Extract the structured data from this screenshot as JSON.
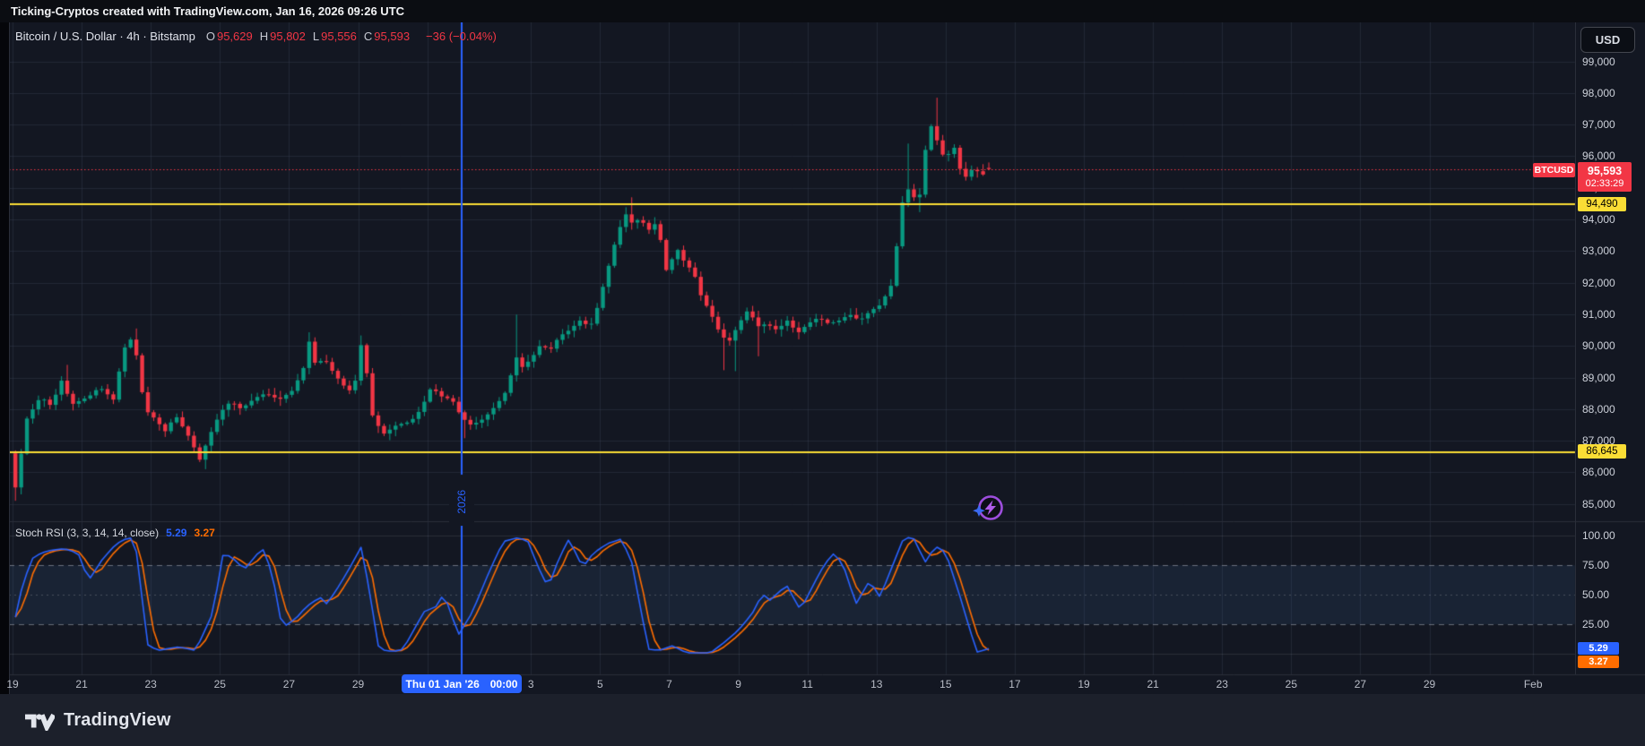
{
  "top_bar": {
    "title": "Ticking-Cryptos created with TradingView.com, Jan 16, 2026 09:26 UTC"
  },
  "chart": {
    "legend": {
      "title": "Bitcoin / U.S. Dollar · 4h · Bitstamp",
      "ohlc": [
        {
          "label": "O",
          "value": "95,629"
        },
        {
          "label": "H",
          "value": "95,802"
        },
        {
          "label": "L",
          "value": "95,556"
        },
        {
          "label": "C",
          "value": "95,593"
        }
      ],
      "change": "−36 (−0.04%)"
    },
    "price_axis": {
      "currency_button": "USD",
      "ticks": [
        {
          "label": "99,000",
          "value": 99000
        },
        {
          "label": "98,000",
          "value": 98000
        },
        {
          "label": "97,000",
          "value": 97000
        },
        {
          "label": "96,000",
          "value": 96000
        },
        {
          "label": "95,000",
          "value": 95000
        },
        {
          "label": "94,000",
          "value": 94000
        },
        {
          "label": "93,000",
          "value": 93000
        },
        {
          "label": "92,000",
          "value": 92000
        },
        {
          "label": "91,000",
          "value": 91000
        },
        {
          "label": "90,000",
          "value": 90000
        },
        {
          "label": "89,000",
          "value": 89000
        },
        {
          "label": "88,000",
          "value": 88000
        },
        {
          "label": "87,000",
          "value": 87000
        },
        {
          "label": "86,000",
          "value": 86000
        },
        {
          "label": "85,000",
          "value": 85000
        }
      ],
      "last_price_label": {
        "symbol": "BTCUSD",
        "price": "95,593",
        "countdown": "02:33:29"
      },
      "level_labels": [
        {
          "text": "94,490"
        },
        {
          "text": "86,645"
        }
      ]
    },
    "time_axis": {
      "ticks": [
        {
          "label": "19",
          "day": 0
        },
        {
          "label": "21",
          "day": 2
        },
        {
          "label": "23",
          "day": 4
        },
        {
          "label": "25",
          "day": 6
        },
        {
          "label": "27",
          "day": 8
        },
        {
          "label": "29",
          "day": 10
        },
        {
          "label": "3",
          "day": 15
        },
        {
          "label": "5",
          "day": 17
        },
        {
          "label": "7",
          "day": 19
        },
        {
          "label": "9",
          "day": 21
        },
        {
          "label": "11",
          "day": 23
        },
        {
          "label": "13",
          "day": 25
        },
        {
          "label": "15",
          "day": 27
        },
        {
          "label": "17",
          "day": 29
        },
        {
          "label": "19",
          "day": 31
        },
        {
          "label": "21",
          "day": 33
        },
        {
          "label": "23",
          "day": 35
        },
        {
          "label": "25",
          "day": 37
        },
        {
          "label": "27",
          "day": 39
        },
        {
          "label": "29",
          "day": 41
        },
        {
          "label": "Feb",
          "day": 44
        }
      ],
      "highlight": {
        "date": "Thu 01 Jan '26",
        "time": "00:00",
        "day": 13
      }
    },
    "year_marker": {
      "label": "2026",
      "day": 13
    }
  },
  "stoch": {
    "legend": {
      "title": "Stoch RSI (3, 3, 14, 14, close)",
      "k": "5.29",
      "d": "3.27"
    },
    "axis": [
      {
        "label": "100.00",
        "value": 100
      },
      {
        "label": "75.00",
        "value": 75
      },
      {
        "label": "50.00",
        "value": 50
      },
      {
        "label": "25.00",
        "value": 25
      }
    ],
    "k_badge": "5.29",
    "d_badge": "3.27"
  },
  "footer": {
    "brand": "TradingView"
  },
  "colors": {
    "background": "#131722",
    "grid": "#363c4e",
    "bull": "#089981",
    "bear": "#f23645",
    "blue": "#2962ff",
    "orange": "#ff6d00",
    "yellow": "#fadd35",
    "purple": "#9d4edd",
    "axis_text": "#cdd1da"
  },
  "chart_data": {
    "type": "candlestick",
    "symbol": "BTCUSD",
    "exchange": "Bitstamp",
    "timeframe": "4h",
    "candles_per_day": 6,
    "visible_days": 45.2,
    "x_start_label": "Dec 19",
    "x_end_label": "Feb",
    "price_ylim": [
      84400,
      100300
    ],
    "grid_days": [
      0,
      2,
      4,
      6,
      8,
      10,
      12,
      15,
      17,
      19,
      21,
      23,
      25,
      27,
      29,
      31,
      33,
      35,
      37,
      39,
      41,
      44
    ],
    "levels": {
      "resistance": 94490,
      "support": 86645,
      "last_price": 95593
    },
    "current_bar": {
      "open": 95629,
      "high": 95802,
      "low": 95556,
      "close": 95593,
      "change": -36,
      "change_pct": -0.04
    },
    "vertical_marker_day": 13,
    "price_path": [
      [
        0.0,
        86600
      ],
      [
        0.17,
        85500
      ],
      [
        0.5,
        87700
      ],
      [
        0.9,
        88400
      ],
      [
        1.2,
        88100
      ],
      [
        1.5,
        88900
      ],
      [
        1.8,
        88150
      ],
      [
        2.3,
        88400
      ],
      [
        2.6,
        88700
      ],
      [
        3.0,
        88300
      ],
      [
        3.3,
        89900
      ],
      [
        3.5,
        90200
      ],
      [
        3.7,
        89600
      ],
      [
        3.9,
        88000
      ],
      [
        4.2,
        87700
      ],
      [
        4.5,
        87300
      ],
      [
        4.8,
        87800
      ],
      [
        5.2,
        87100
      ],
      [
        5.5,
        86400
      ],
      [
        5.8,
        87200
      ],
      [
        6.1,
        87900
      ],
      [
        6.4,
        88250
      ],
      [
        6.7,
        88000
      ],
      [
        7.1,
        88350
      ],
      [
        7.4,
        88500
      ],
      [
        7.8,
        88300
      ],
      [
        8.2,
        88600
      ],
      [
        8.5,
        89300
      ],
      [
        8.65,
        90200
      ],
      [
        8.85,
        89400
      ],
      [
        9.1,
        89600
      ],
      [
        9.4,
        89100
      ],
      [
        9.7,
        88700
      ],
      [
        9.95,
        88500
      ],
      [
        10.15,
        90100
      ],
      [
        10.3,
        89400
      ],
      [
        10.5,
        87800
      ],
      [
        10.8,
        87200
      ],
      [
        11.2,
        87500
      ],
      [
        11.6,
        87600
      ],
      [
        11.9,
        88000
      ],
      [
        12.2,
        88700
      ],
      [
        12.5,
        88400
      ],
      [
        12.8,
        88300
      ],
      [
        13.05,
        87800
      ],
      [
        13.3,
        87500
      ],
      [
        13.6,
        87600
      ],
      [
        13.9,
        87900
      ],
      [
        14.2,
        88300
      ],
      [
        14.45,
        88700
      ],
      [
        14.6,
        89800
      ],
      [
        14.8,
        89300
      ],
      [
        15.1,
        89600
      ],
      [
        15.4,
        90100
      ],
      [
        15.6,
        89800
      ],
      [
        15.9,
        90300
      ],
      [
        16.2,
        90500
      ],
      [
        16.5,
        90800
      ],
      [
        16.8,
        90600
      ],
      [
        17.0,
        91200
      ],
      [
        17.3,
        92400
      ],
      [
        17.6,
        93600
      ],
      [
        17.85,
        94200
      ],
      [
        18.05,
        93800
      ],
      [
        18.25,
        94100
      ],
      [
        18.45,
        93600
      ],
      [
        18.65,
        93900
      ],
      [
        18.85,
        93300
      ],
      [
        19.05,
        92100
      ],
      [
        19.25,
        93200
      ],
      [
        19.5,
        92700
      ],
      [
        19.8,
        92300
      ],
      [
        20.0,
        91600
      ],
      [
        20.3,
        91000
      ],
      [
        20.55,
        90400
      ],
      [
        20.8,
        90100
      ],
      [
        21.1,
        90700
      ],
      [
        21.4,
        91200
      ],
      [
        21.6,
        90600
      ],
      [
        21.9,
        90700
      ],
      [
        22.2,
        90500
      ],
      [
        22.5,
        90800
      ],
      [
        22.8,
        90400
      ],
      [
        23.1,
        90700
      ],
      [
        23.4,
        90900
      ],
      [
        23.7,
        90700
      ],
      [
        24.0,
        90800
      ],
      [
        24.3,
        91000
      ],
      [
        24.6,
        90800
      ],
      [
        24.9,
        91100
      ],
      [
        25.2,
        91300
      ],
      [
        25.5,
        91900
      ],
      [
        25.7,
        93400
      ],
      [
        25.9,
        95100
      ],
      [
        26.1,
        94800
      ],
      [
        26.3,
        94500
      ],
      [
        26.5,
        96200
      ],
      [
        26.7,
        97100
      ],
      [
        26.9,
        96200
      ],
      [
        27.1,
        95900
      ],
      [
        27.3,
        96400
      ],
      [
        27.5,
        95600
      ],
      [
        27.7,
        95300
      ],
      [
        27.9,
        95700
      ],
      [
        28.1,
        95350
      ],
      [
        28.33,
        95593
      ]
    ],
    "wick_events": [
      [
        0.08,
        85100,
        "low"
      ],
      [
        1.5,
        89400,
        "high"
      ],
      [
        3.5,
        90550,
        "high"
      ],
      [
        5.5,
        86100,
        "low"
      ],
      [
        8.65,
        90430,
        "high"
      ],
      [
        10.15,
        90330,
        "high"
      ],
      [
        13.05,
        87080,
        "low"
      ],
      [
        14.6,
        90990,
        "high"
      ],
      [
        17.85,
        94700,
        "high"
      ],
      [
        20.55,
        89230,
        "low"
      ],
      [
        20.85,
        89200,
        "low"
      ],
      [
        21.6,
        89670,
        "low"
      ],
      [
        25.9,
        96400,
        "high"
      ],
      [
        26.3,
        94230,
        "low"
      ],
      [
        26.75,
        97850,
        "high"
      ],
      [
        28.33,
        95802,
        "high"
      ]
    ],
    "stoch_rsi": {
      "title": "Stoch RSI (3, 3, 14, 14, close)",
      "k_last": 5.29,
      "d_last": 3.27,
      "overbought": 75,
      "middle": 50,
      "oversold": 25,
      "ylim": [
        0,
        100
      ],
      "k_path": [
        [
          0.0,
          20
        ],
        [
          0.3,
          60
        ],
        [
          0.6,
          82
        ],
        [
          1.0,
          87
        ],
        [
          1.5,
          89
        ],
        [
          1.9,
          85
        ],
        [
          2.2,
          62
        ],
        [
          2.6,
          80
        ],
        [
          3.0,
          93
        ],
        [
          3.4,
          99
        ],
        [
          3.6,
          85
        ],
        [
          3.9,
          8
        ],
        [
          4.2,
          3
        ],
        [
          4.8,
          6
        ],
        [
          5.3,
          3
        ],
        [
          5.8,
          35
        ],
        [
          6.1,
          86
        ],
        [
          6.5,
          78
        ],
        [
          6.7,
          71
        ],
        [
          7.1,
          85
        ],
        [
          7.3,
          89
        ],
        [
          7.6,
          55
        ],
        [
          7.8,
          22
        ],
        [
          8.2,
          30
        ],
        [
          8.5,
          40
        ],
        [
          8.9,
          48
        ],
        [
          9.1,
          42
        ],
        [
          9.5,
          60
        ],
        [
          9.8,
          75
        ],
        [
          10.1,
          91
        ],
        [
          10.4,
          40
        ],
        [
          10.6,
          4
        ],
        [
          11.0,
          2
        ],
        [
          11.3,
          4
        ],
        [
          11.7,
          25
        ],
        [
          12.0,
          40
        ],
        [
          12.2,
          35
        ],
        [
          12.35,
          50
        ],
        [
          12.6,
          42
        ],
        [
          12.9,
          16
        ],
        [
          13.3,
          35
        ],
        [
          13.8,
          70
        ],
        [
          14.2,
          95
        ],
        [
          14.6,
          98
        ],
        [
          14.9,
          96
        ],
        [
          15.2,
          74
        ],
        [
          15.5,
          56
        ],
        [
          15.8,
          80
        ],
        [
          16.1,
          97
        ],
        [
          16.5,
          73
        ],
        [
          16.8,
          85
        ],
        [
          17.2,
          93
        ],
        [
          17.6,
          97
        ],
        [
          17.9,
          80
        ],
        [
          18.4,
          4
        ],
        [
          18.7,
          3
        ],
        [
          19.1,
          7
        ],
        [
          19.5,
          1
        ],
        [
          20.2,
          1
        ],
        [
          20.6,
          10
        ],
        [
          21.0,
          20
        ],
        [
          21.4,
          34
        ],
        [
          21.7,
          51
        ],
        [
          21.9,
          45
        ],
        [
          22.4,
          58
        ],
        [
          22.8,
          37
        ],
        [
          23.2,
          60
        ],
        [
          23.5,
          76
        ],
        [
          23.8,
          86
        ],
        [
          24.1,
          70
        ],
        [
          24.4,
          42
        ],
        [
          24.8,
          62
        ],
        [
          25.1,
          48
        ],
        [
          25.4,
          70
        ],
        [
          25.8,
          99
        ],
        [
          26.1,
          97
        ],
        [
          26.4,
          77
        ],
        [
          26.7,
          91
        ],
        [
          27.0,
          86
        ],
        [
          27.4,
          50
        ],
        [
          27.9,
          1.5
        ],
        [
          28.33,
          5.29
        ]
      ]
    }
  }
}
